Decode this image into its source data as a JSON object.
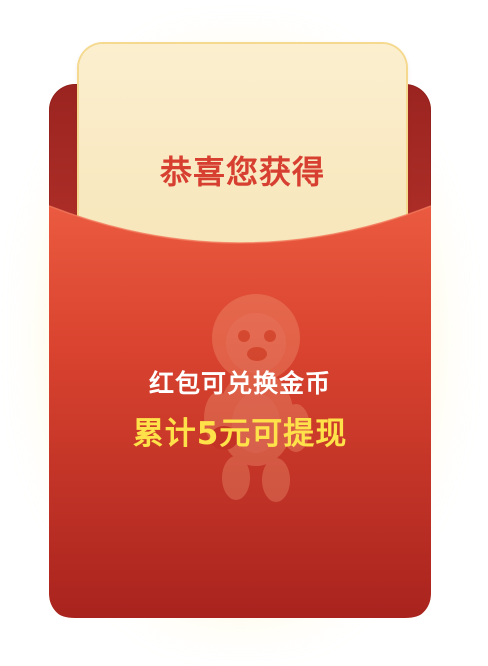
{
  "card": {
    "title": "恭喜您获得"
  },
  "envelope": {
    "line1": "红包可兑换金币",
    "line2": "累计5元可提现",
    "mascot_icon": "lion-mascot-icon"
  },
  "colors": {
    "card_bg": "#fbefcf",
    "title": "#d73f31",
    "envelope_red": "#d84634",
    "envelope_dark": "#9f221d",
    "highlight": "#ffe24a"
  }
}
